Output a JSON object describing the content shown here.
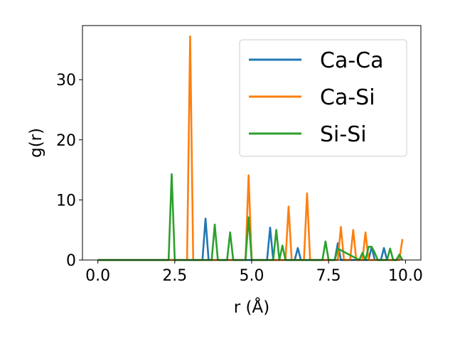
{
  "chart_data": {
    "type": "line",
    "title": "",
    "xlabel": "r (Å)",
    "ylabel": "g(r)",
    "xlim": [
      -0.5,
      10.5
    ],
    "ylim": [
      0,
      39
    ],
    "xticks": [
      0.0,
      2.5,
      5.0,
      7.5,
      10.0
    ],
    "xtick_labels": [
      "0.0",
      "2.5",
      "5.0",
      "7.5",
      "10.0"
    ],
    "yticks": [
      0,
      10,
      20,
      30
    ],
    "ytick_labels": [
      "0",
      "10",
      "20",
      "30"
    ],
    "grid": false,
    "legend_position": "upper-right",
    "series": [
      {
        "name": "Ca-Ca",
        "color": "#1f77b4",
        "x": [
          0.0,
          3.4,
          3.5,
          3.6,
          5.5,
          5.6,
          5.7,
          6.4,
          6.5,
          6.6,
          7.7,
          7.8,
          7.9,
          8.8,
          8.9,
          9.0,
          9.2,
          9.3,
          9.4,
          9.7,
          9.8,
          9.9
        ],
        "y": [
          0,
          0,
          6.9,
          0,
          0,
          5.4,
          0,
          0,
          2.0,
          0,
          0,
          2.8,
          0,
          0,
          2.2,
          0,
          0,
          2.0,
          0,
          0,
          0.8,
          0
        ]
      },
      {
        "name": "Ca-Si",
        "color": "#ff7f0e",
        "x": [
          0.0,
          2.9,
          3.0,
          3.1,
          4.8,
          4.9,
          5.0,
          6.1,
          6.2,
          6.3,
          6.7,
          6.8,
          6.9,
          7.8,
          7.9,
          8.0,
          8.2,
          8.3,
          8.4,
          8.6,
          8.7,
          8.8,
          9.8,
          9.9
        ],
        "y": [
          0,
          0,
          37.2,
          0,
          0,
          14.1,
          0,
          0,
          8.9,
          0,
          0,
          11.1,
          0,
          0,
          5.5,
          0,
          0,
          5.0,
          0,
          0,
          4.6,
          0,
          0,
          3.5
        ]
      },
      {
        "name": "Si-Si",
        "color": "#2ca02c",
        "x": [
          0.0,
          2.3,
          2.4,
          2.5,
          3.7,
          3.8,
          3.9,
          4.2,
          4.3,
          4.4,
          4.8,
          4.9,
          5.0,
          5.7,
          5.8,
          5.9,
          6.0,
          6.1,
          7.3,
          7.4,
          7.5,
          7.7,
          7.8,
          8.5,
          8.6,
          8.7,
          8.8,
          8.9,
          9.0,
          9.1,
          9.4,
          9.5,
          9.6,
          9.7,
          9.8,
          9.9
        ],
        "y": [
          0,
          0,
          14.3,
          0,
          0,
          5.9,
          0,
          0,
          4.6,
          0,
          0,
          7.1,
          0,
          0,
          5.0,
          0,
          2.4,
          0,
          0,
          3.1,
          0,
          0,
          1.9,
          0,
          1.2,
          0,
          2.2,
          2.2,
          1.2,
          0,
          0,
          1.9,
          0,
          0,
          0.9,
          0
        ]
      }
    ]
  }
}
